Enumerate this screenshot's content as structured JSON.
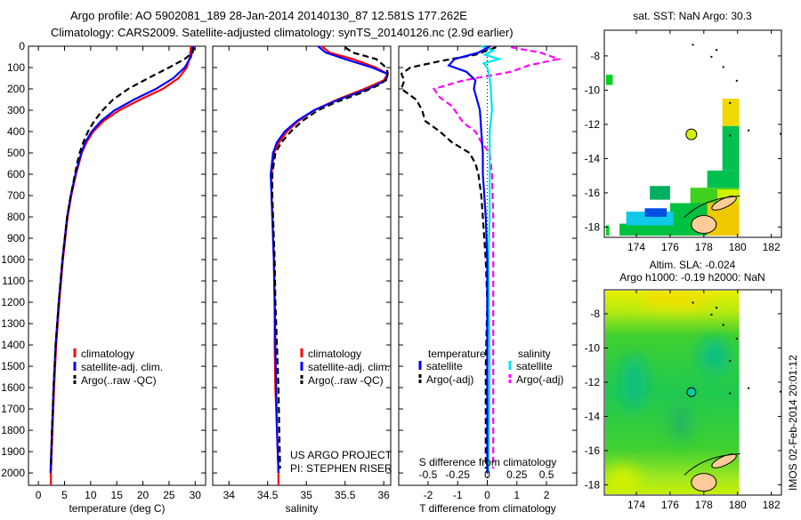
{
  "title": {
    "line1": "Argo profile: AO 5902081_189 28-Jan-2014 20140130_87 12.581S 177.262E",
    "line2": "Climatology: CARS2009. Satellite-adjusted climatology: synTS_20140126.nc (2.9d earlier)"
  },
  "timestamp": "IMOS 02-Feb-2014 20:01:12",
  "credit": {
    "line1": "US ARGO PROJECT",
    "line2": "PI: STEPHEN RISER"
  },
  "colors": {
    "climatology": "#ff0000",
    "satellite": "#0000ff",
    "argo": "#000000",
    "sal_satellite": "#00e5ee",
    "sal_argo": "#ff00ff"
  },
  "chart_data": [
    {
      "type": "line",
      "id": "temperature",
      "xlabel": "temperature (deg C)",
      "ylabel": "",
      "xlim": [
        -1.9,
        32
      ],
      "ylim": [
        2058,
        0
      ],
      "xticks": [
        0,
        5,
        10,
        15,
        20,
        25,
        30
      ],
      "yticks": [
        0,
        100,
        200,
        300,
        400,
        500,
        600,
        700,
        800,
        900,
        1000,
        1100,
        1200,
        1300,
        1400,
        1500,
        1600,
        1700,
        1800,
        1900,
        2000
      ],
      "legend": [
        "climatology",
        "satellite-adj. clim.",
        "Argo(..raw -QC)"
      ],
      "legend_position": "lower-center",
      "series": [
        {
          "name": "climatology",
          "depth": [
            0,
            50,
            100,
            150,
            200,
            250,
            300,
            350,
            400,
            450,
            500,
            600,
            700,
            800,
            1000,
            1200,
            1400,
            1600,
            1800,
            2000,
            2058
          ],
          "values": [
            29.2,
            29,
            28.4,
            26.8,
            23.8,
            19.5,
            15.5,
            12.5,
            10.5,
            9.2,
            8.3,
            7.2,
            6.3,
            5.6,
            4.7,
            4.0,
            3.4,
            3.0,
            2.7,
            2.4,
            2.4
          ]
        },
        {
          "name": "satellite-adj. clim.",
          "depth": [
            0,
            50,
            100,
            150,
            200,
            250,
            300,
            350,
            400,
            450,
            500,
            600,
            700,
            800,
            1000,
            1200,
            1400,
            1600,
            1800,
            2000
          ],
          "values": [
            29.6,
            29.2,
            28,
            25.8,
            22.5,
            18.3,
            14.6,
            12,
            10.2,
            9,
            8.2,
            7.1,
            6.2,
            5.5,
            4.6,
            3.9,
            3.3,
            2.9,
            2.6,
            2.3
          ]
        },
        {
          "name": "Argo(..raw -QC)",
          "depth": [
            5,
            30,
            60,
            100,
            150,
            200,
            250,
            300,
            350,
            400,
            450,
            500,
            550,
            600,
            700,
            800,
            1000,
            1200,
            1400,
            1600,
            1800,
            1980
          ],
          "values": [
            29.8,
            29.5,
            28,
            25,
            21,
            17.2,
            14.3,
            12.3,
            10.7,
            9.5,
            8.6,
            7.9,
            7.4,
            7.0,
            6.2,
            5.5,
            4.6,
            3.9,
            3.3,
            2.9,
            2.6,
            2.4
          ]
        }
      ]
    },
    {
      "type": "line",
      "id": "salinity",
      "xlabel": "salinity",
      "xlim": [
        33.79,
        36.09
      ],
      "ylim": [
        2058,
        0
      ],
      "xticks": [
        34,
        34.5,
        35,
        35.5,
        36
      ],
      "legend": [
        "climatology",
        "satellite-adj. clim.",
        "Argo(..raw -QC)"
      ],
      "legend_position": "lower-center",
      "series": [
        {
          "name": "climatology",
          "depth": [
            0,
            30,
            60,
            100,
            130,
            160,
            200,
            250,
            300,
            350,
            400,
            450,
            500,
            600,
            700,
            800,
            1000,
            1200,
            1400,
            1600,
            1800,
            2000,
            2058
          ],
          "values": [
            35.2,
            35.3,
            35.6,
            35.9,
            36.05,
            36.0,
            35.75,
            35.4,
            35.1,
            34.9,
            34.75,
            34.65,
            34.58,
            34.55,
            34.55,
            34.56,
            34.58,
            34.59,
            34.59,
            34.6,
            34.62,
            34.64,
            34.64
          ]
        },
        {
          "name": "satellite-adj. clim.",
          "depth": [
            0,
            30,
            60,
            100,
            130,
            160,
            200,
            250,
            300,
            350,
            400,
            450,
            500,
            600,
            700,
            800,
            1000,
            1200,
            1400,
            1600,
            1800,
            2000
          ],
          "values": [
            35.15,
            35.25,
            35.5,
            35.85,
            36.05,
            36.03,
            35.8,
            35.42,
            35.1,
            34.88,
            34.72,
            34.62,
            34.57,
            34.54,
            34.55,
            34.56,
            34.58,
            34.59,
            34.6,
            34.61,
            34.62,
            34.64
          ]
        },
        {
          "name": "Argo(..raw -QC)",
          "depth": [
            5,
            30,
            60,
            90,
            120,
            150,
            180,
            220,
            260,
            300,
            350,
            400,
            450,
            500,
            600,
            700,
            800,
            1000,
            1200,
            1400,
            1600,
            1800,
            1980
          ],
          "values": [
            35.5,
            35.6,
            35.9,
            36.0,
            36.05,
            36.05,
            35.95,
            35.7,
            35.4,
            35.15,
            34.95,
            34.8,
            34.68,
            34.6,
            34.56,
            34.56,
            34.57,
            34.59,
            34.6,
            34.62,
            34.64,
            34.65,
            34.66
          ]
        }
      ]
    },
    {
      "type": "line",
      "id": "difference",
      "xlabel": "T difference from climatology",
      "x2label": "S difference from climatology",
      "xlim": [
        -2.99,
        3.02
      ],
      "ylim": [
        2058,
        0
      ],
      "xticks": [
        -2,
        -1,
        0,
        1,
        2
      ],
      "x2ticks": [
        -0.5,
        -0.25,
        0,
        0.25,
        0.5
      ],
      "x2tick_labels": [
        "-0.5",
        "-0.25",
        "0",
        "0.25",
        "0.5"
      ],
      "legend_headers": [
        "temperature",
        "salinity"
      ],
      "legend": [
        "satellite",
        "Argo(-adj)",
        "satellite",
        "Argo(-adj)"
      ],
      "series": [
        {
          "name": "T satellite",
          "quantity": "T",
          "depth": [
            0,
            30,
            60,
            90,
            120,
            160,
            200,
            250,
            300,
            400,
            500,
            600,
            700,
            800,
            1000,
            1200,
            1500,
            1800,
            2000
          ],
          "values": [
            0.1,
            -0.3,
            -1.1,
            -1.3,
            -0.7,
            -0.4,
            -0.45,
            -0.35,
            -0.25,
            -0.2,
            -0.15,
            -0.15,
            -0.1,
            -0.05,
            0,
            0,
            0,
            0,
            0
          ]
        },
        {
          "name": "T Argo(-adj)",
          "quantity": "T",
          "depth": [
            5,
            40,
            70,
            100,
            130,
            160,
            200,
            250,
            300,
            350,
            400,
            450,
            500,
            550,
            600,
            700,
            800,
            1000,
            1200,
            1500,
            1800,
            1980
          ],
          "values": [
            0.3,
            -0.4,
            -1.6,
            -2.6,
            -2.9,
            -2.8,
            -2.9,
            -2.4,
            -2.2,
            -2.1,
            -1.6,
            -1.2,
            -0.6,
            -0.4,
            -0.3,
            -0.2,
            -0.15,
            -0.05,
            0,
            -0.05,
            -0.05,
            -0.05
          ]
        },
        {
          "name": "S satellite",
          "quantity": "S",
          "depth": [
            0,
            20,
            40,
            60,
            80,
            100,
            150,
            200,
            300,
            400,
            500,
            600,
            800,
            1000,
            1500,
            2000
          ],
          "values": [
            -0.05,
            0.05,
            -0.02,
            0.1,
            -0.03,
            0.0,
            0.02,
            0.03,
            0.04,
            0.02,
            0.02,
            0.02,
            0.02,
            0.01,
            0.02,
            0.01
          ]
        },
        {
          "name": "S Argo(-adj)",
          "quantity": "S",
          "depth": [
            5,
            30,
            60,
            90,
            120,
            160,
            200,
            240,
            280,
            320,
            360,
            400,
            450,
            500,
            600,
            800,
            1000,
            1400,
            1800,
            1980
          ],
          "values": [
            0.2,
            0.45,
            0.6,
            0.35,
            0.2,
            -0.2,
            -0.45,
            -0.4,
            -0.3,
            -0.25,
            -0.2,
            -0.1,
            -0.05,
            0.02,
            0.04,
            0.05,
            0.05,
            0.05,
            0.05,
            0.05
          ]
        }
      ]
    },
    {
      "type": "heatmap",
      "id": "sst_map",
      "title": "sat. SST: NaN Argo: 30.3",
      "xlim": [
        172.1,
        182.6
      ],
      "ylim": [
        -18.6,
        -6.5
      ],
      "xticks": [
        174,
        176,
        178,
        180,
        182
      ],
      "yticks": [
        -8,
        -10,
        -12,
        -14,
        -16,
        -18
      ],
      "argo_position": {
        "lon": 177.262,
        "lat": -12.581,
        "color": "#d4f000"
      },
      "cells": [
        {
          "lon": [
            172.2,
            172.6
          ],
          "lat": [
            -9.7,
            -9.1
          ],
          "color": "#00d020"
        },
        {
          "lon": [
            172.2,
            172.4
          ],
          "lat": [
            -18.5,
            -17.9
          ],
          "color": "#00d020"
        },
        {
          "lon": [
            179.1,
            180.1
          ],
          "lat": [
            -12.1,
            -10.5
          ],
          "color": "#f0d800"
        },
        {
          "lon": [
            179.1,
            180.1
          ],
          "lat": [
            -14.7,
            -12.1
          ],
          "color": "#00c050"
        },
        {
          "lon": [
            178.2,
            180.1
          ],
          "lat": [
            -15.7,
            -14.7
          ],
          "color": "#00c050"
        },
        {
          "lon": [
            177.2,
            180.1
          ],
          "lat": [
            -16.6,
            -15.7
          ],
          "color": "#40d020"
        },
        {
          "lon": [
            178.8,
            180.1
          ],
          "lat": [
            -16.6,
            -15.8
          ],
          "color": "#d0f000"
        },
        {
          "lon": [
            176.9,
            180.1
          ],
          "lat": [
            -18.5,
            -16.6
          ],
          "color": "#f0c800"
        },
        {
          "lon": [
            176.0,
            178.2
          ],
          "lat": [
            -18.5,
            -16.6
          ],
          "color": "#00c040"
        },
        {
          "lon": [
            174.8,
            176.0
          ],
          "lat": [
            -16.4,
            -15.6
          ],
          "color": "#00b060"
        },
        {
          "lon": [
            173.0,
            176.2
          ],
          "lat": [
            -18.5,
            -17.8
          ],
          "color": "#00c040"
        },
        {
          "lon": [
            173.4,
            176.2
          ],
          "lat": [
            -17.9,
            -17.1
          ],
          "color": "#10c8e8"
        },
        {
          "lon": [
            174.5,
            175.8
          ],
          "lat": [
            -17.4,
            -16.9
          ],
          "color": "#0050e0"
        }
      ]
    },
    {
      "type": "heatmap",
      "id": "sla_map",
      "title": "Altim. SLA: -0.024",
      "subtitle": "Argo h1000: -0.19 h2000: NaN",
      "xlim": [
        172.1,
        182.6
      ],
      "ylim": [
        -18.6,
        -6.6
      ],
      "xticks": [
        174,
        176,
        178,
        180,
        182
      ],
      "yticks": [
        -8,
        -10,
        -12,
        -14,
        -16,
        -18
      ],
      "data_lon_max": 180.1,
      "argo_position": {
        "lon": 177.262,
        "lat": -12.581,
        "color": "#10c8a0"
      }
    }
  ]
}
